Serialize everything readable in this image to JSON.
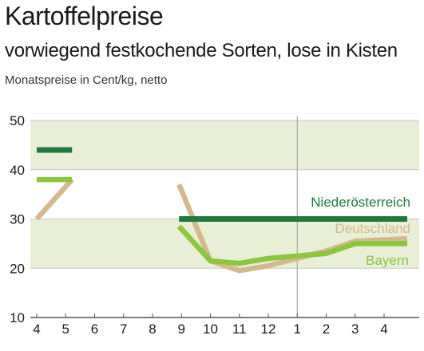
{
  "header": {
    "title": "Kartoffelpreise",
    "subtitle": "vorwiegend festkochende Sorten, lose in Kisten",
    "unit_label": "Monatspreise in Cent/kg, netto"
  },
  "chart_data": {
    "type": "line",
    "title": "Kartoffelpreise",
    "subtitle": "vorwiegend festkochende Sorten, lose in Kisten",
    "ylabel": "Monatspreise in Cent/kg, netto",
    "xlabel": "",
    "x_ticks": [
      "4",
      "5",
      "6",
      "7",
      "8",
      "9",
      "10",
      "11",
      "12",
      "1",
      "2",
      "3",
      "4"
    ],
    "y_ticks": [
      10,
      20,
      30,
      40,
      50
    ],
    "ylim": [
      10,
      50
    ],
    "bands": [
      [
        20,
        30
      ],
      [
        40,
        50
      ]
    ],
    "year_divider_at": "1",
    "series": [
      {
        "name": "Niederösterreich",
        "color": "#1f7a3c",
        "segments": [
          [
            [
              "4",
              44
            ],
            [
              "5",
              44
            ]
          ],
          [
            [
              "9",
              30
            ],
            [
              "10",
              30
            ],
            [
              "11",
              30
            ],
            [
              "12",
              30
            ],
            [
              "1",
              30
            ],
            [
              "2",
              30
            ],
            [
              "3",
              30
            ],
            [
              "4",
              30
            ]
          ]
        ]
      },
      {
        "name": "Deutschland",
        "color": "#d4b98e",
        "segments": [
          [
            [
              "4",
              30
            ],
            [
              "5",
              38
            ]
          ],
          [
            [
              "9",
              37
            ],
            [
              "10",
              21.5
            ],
            [
              "11",
              19.5
            ],
            [
              "12",
              20.5
            ],
            [
              "1",
              22
            ],
            [
              "2",
              23.5
            ],
            [
              "3",
              25.5
            ],
            [
              "4",
              26
            ]
          ]
        ]
      },
      {
        "name": "Bayern",
        "color": "#8cc63f",
        "segments": [
          [
            [
              "4",
              38
            ],
            [
              "5",
              38
            ]
          ],
          [
            [
              "9",
              28.5
            ],
            [
              "10",
              21.5
            ],
            [
              "11",
              21
            ],
            [
              "12",
              22
            ],
            [
              "1",
              22.5
            ],
            [
              "2",
              23
            ],
            [
              "3",
              25
            ],
            [
              "4",
              25
            ]
          ]
        ]
      }
    ]
  }
}
